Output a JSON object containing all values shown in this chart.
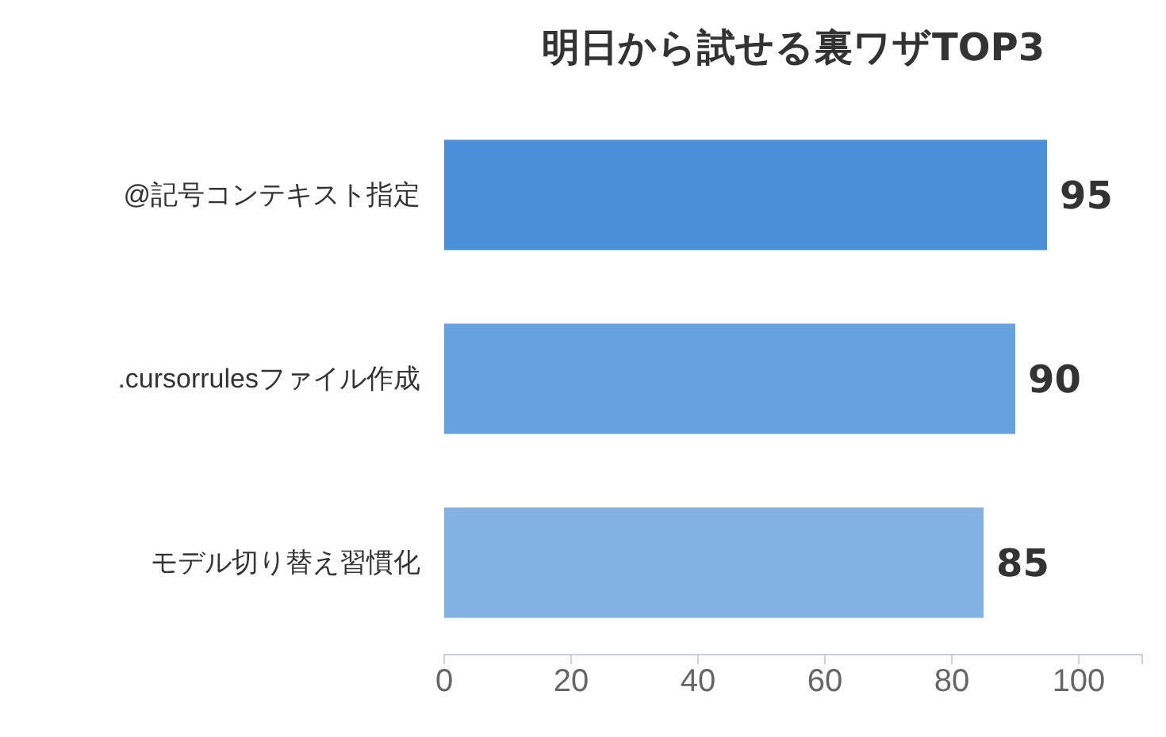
{
  "chart_data": {
    "type": "bar",
    "orientation": "horizontal",
    "title": "明日から試せる裏ワザTOP3",
    "categories": [
      "@記号コンテキスト指定",
      ".cursorrulesファイル作成",
      "モデル切り替え習慣化"
    ],
    "values": [
      95,
      90,
      85
    ],
    "colors": [
      "#4a90d9",
      "#67a3e0",
      "#82b2e3"
    ],
    "xlim": [
      0,
      110
    ],
    "xticks": [
      0,
      20,
      40,
      60,
      80,
      100
    ],
    "data_labels": true
  }
}
